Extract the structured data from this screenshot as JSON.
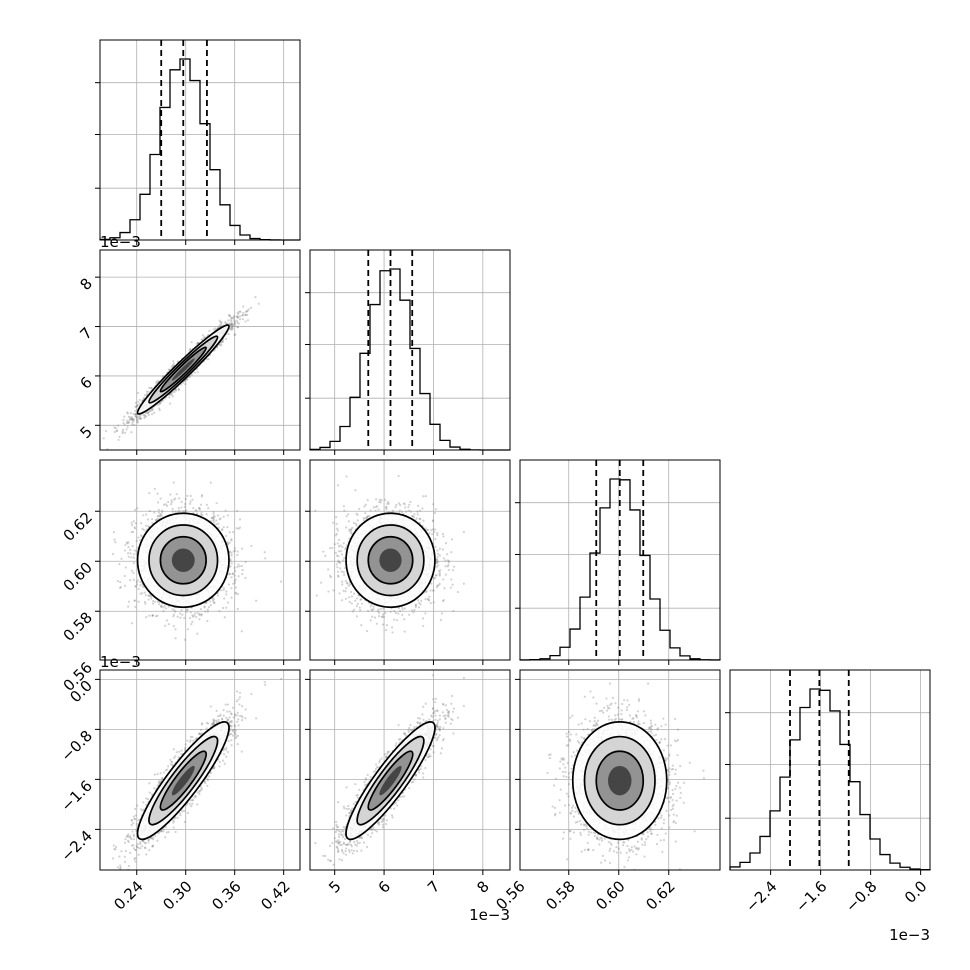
{
  "chart_data": {
    "type": "corner",
    "parameters": [
      {
        "index": 0,
        "scale_label": "",
        "ticks": [
          0.24,
          0.3,
          0.36,
          0.42
        ],
        "tick_labels": [
          "0.24",
          "0.30",
          "0.36",
          "0.42"
        ],
        "range": [
          0.195,
          0.44
        ],
        "median": 0.297,
        "q16": 0.27,
        "q84": 0.326,
        "sigma": 0.028
      },
      {
        "index": 1,
        "scale_label": "1e−3",
        "ticks": [
          5,
          6,
          7,
          8
        ],
        "tick_labels": [
          "5",
          "6",
          "7",
          "8"
        ],
        "range": [
          4.5,
          8.55
        ],
        "median": 6.13,
        "q16": 5.68,
        "q84": 6.57,
        "sigma": 0.45
      },
      {
        "index": 2,
        "scale_label": "",
        "ticks": [
          0.56,
          0.58,
          0.6,
          0.62
        ],
        "tick_labels": [
          "0.56",
          "0.58",
          "0.60",
          "0.62"
        ],
        "range": [
          0.5605,
          0.6405
        ],
        "median": 0.6004,
        "q16": 0.591,
        "q84": 0.6098,
        "sigma": 0.0094
      },
      {
        "index": 3,
        "scale_label": "1e−3",
        "ticks": [
          -2.4,
          -1.6,
          -0.8,
          0.0
        ],
        "tick_labels": [
          "−2.4",
          "−1.6",
          "−0.8",
          "0.0"
        ],
        "range": [
          -3.05,
          0.15
        ],
        "median": -1.62,
        "q16": -2.09,
        "q84": -1.15,
        "sigma": 0.47
      }
    ],
    "correlations": [
      [
        1,
        0.97,
        0.0,
        0.9
      ],
      [
        0.97,
        1,
        0.0,
        0.9
      ],
      [
        0.0,
        0.0,
        1,
        0.0
      ],
      [
        0.9,
        0.9,
        0.0,
        1
      ]
    ],
    "histogram_bins": 20,
    "quantiles": [
      0.16,
      0.5,
      0.84
    ],
    "grid": true,
    "axis_offset_labels": {
      "y_row1": "1e−3",
      "y_row3": "1e−3",
      "x_col1": "1e−3",
      "x_col3": "1e−3"
    }
  },
  "colors": {
    "contour": "#000000",
    "scatter": "#7f7f7f",
    "grid": "#b0b0b0"
  }
}
